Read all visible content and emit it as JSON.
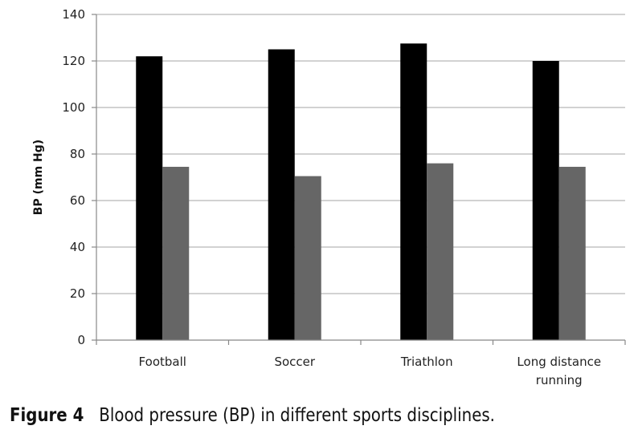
{
  "caption": {
    "label": "Figure 4",
    "text": "Blood pressure (BP) in different sports disciplines."
  },
  "colors": {
    "series1": "#000000",
    "series2": "#666666",
    "grid": "#b8b8b8",
    "axis": "#888888"
  },
  "chart_data": {
    "type": "bar",
    "categories": [
      [
        "Football"
      ],
      [
        "Soccer"
      ],
      [
        "Triathlon"
      ],
      [
        "Long distance",
        "running"
      ]
    ],
    "series": [
      {
        "values": [
          122,
          125,
          127.5,
          120
        ]
      },
      {
        "values": [
          74.5,
          70.5,
          76,
          74.5
        ]
      }
    ],
    "ylabel": "BP (mm Hg)",
    "ylim": [
      0,
      140
    ],
    "yticks": [
      0,
      20,
      40,
      60,
      80,
      100,
      120,
      140
    ],
    "grid": true,
    "legend": "none"
  }
}
